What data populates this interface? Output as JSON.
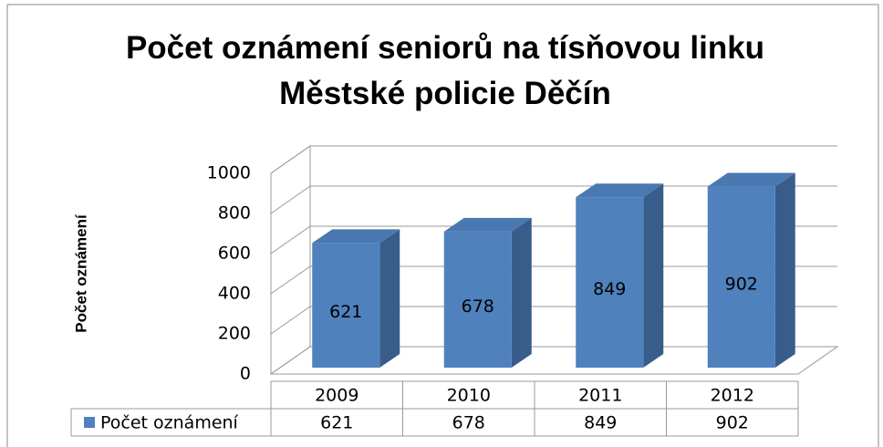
{
  "chart_data": {
    "type": "bar",
    "title": "Počet oznámení seniorů na tísňovou linku Městské policie Děčín",
    "ylabel": "Počet oznámení",
    "categories": [
      "2009",
      "2010",
      "2011",
      "2012"
    ],
    "series": [
      {
        "name": "Počet oznámení",
        "color": "#4f81bd",
        "values": [
          621,
          678,
          849,
          902
        ]
      }
    ],
    "ylim": [
      0,
      1000
    ],
    "yticks": [
      0,
      200,
      400,
      600,
      800,
      1000
    ],
    "grid": true,
    "legend": "bottom-left"
  }
}
